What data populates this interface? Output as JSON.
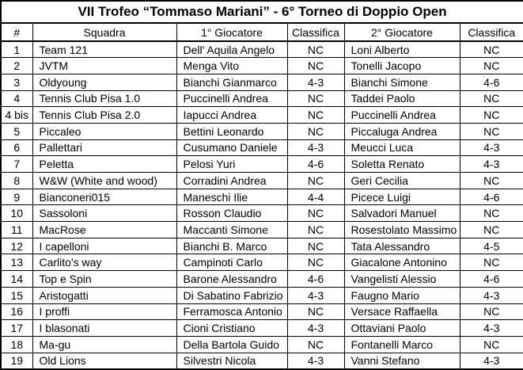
{
  "title": "VII Trofeo “Tommaso Mariani” - 6° Torneo di Doppio Open",
  "colors": {
    "border": "#000000",
    "background": "#ffffff",
    "text": "#000000"
  },
  "table": {
    "columns": [
      "#",
      "Squadra",
      "1° Giocatore",
      "Classifica",
      "2° Giocatore",
      "Classifica"
    ],
    "rows": [
      [
        "1",
        "Team 121",
        "Dell' Aquila Angelo",
        "NC",
        "Loni Alberto",
        "NC"
      ],
      [
        "2",
        "JVTM",
        "Menga Vito",
        "NC",
        "Tonelli Jacopo",
        "NC"
      ],
      [
        "3",
        "Oldyoung",
        "Bianchi Gianmarco",
        "4-3",
        "Bianchi Simone",
        "4-6"
      ],
      [
        "4",
        "Tennis Club Pisa 1.0",
        "Puccinelli Andrea",
        "NC",
        "Taddei Paolo",
        "NC"
      ],
      [
        "4 bis",
        "Tennis Club Pisa 2.0",
        "Iapucci Andrea",
        "NC",
        "Puccinelli Andrea",
        "NC"
      ],
      [
        "5",
        "Piccaleo",
        "Bettini Leonardo",
        "NC",
        "Piccaluga Andrea",
        "NC"
      ],
      [
        "6",
        "Pallettari",
        "Cusumano Daniele",
        "4-3",
        "Meucci Luca",
        "4-3"
      ],
      [
        "7",
        "Peletta",
        "Pelosi Yuri",
        "4-6",
        "Soletta Renato",
        "4-3"
      ],
      [
        "8",
        "W&W (White and wood)",
        "Corradini Andrea",
        "NC",
        "Geri Cecilia",
        "NC"
      ],
      [
        "9",
        "Bianconeri015",
        "Maneschi Ilie",
        "4-4",
        "Picece Luigi",
        "4-6"
      ],
      [
        "10",
        "Sassoloni",
        "Rosson Claudio",
        "NC",
        "Salvadori Manuel",
        "NC"
      ],
      [
        "11",
        "MacRose",
        "Maccanti Simone",
        "NC",
        "Rosestolato Massimo",
        "NC"
      ],
      [
        "12",
        "I capelloni",
        "Bianchi B. Marco",
        "NC",
        "Tata Alessandro",
        "4-5"
      ],
      [
        "13",
        "Carlito's way",
        "Campinoti Carlo",
        "NC",
        "Giacalone Antonino",
        "NC"
      ],
      [
        "14",
        "Top e Spin",
        "Barone Alessandro",
        "4-6",
        "Vangelisti Alessio",
        "4-6"
      ],
      [
        "15",
        "Aristogatti",
        "Di Sabatino Fabrizio",
        "4-3",
        "Faugno Mario",
        "4-3"
      ],
      [
        "16",
        "I proffi",
        "Ferramosca Antonio",
        "NC",
        "Versace Raffaella",
        "NC"
      ],
      [
        "17",
        "I blasonati",
        "Cioni Cristiano",
        "4-3",
        "Ottaviani Paolo",
        "4-3"
      ],
      [
        "18",
        "Ma-gu",
        "Della Bartola Guido",
        "NC",
        "Fontanelli Marco",
        "NC"
      ],
      [
        "19",
        "Old Lions",
        "Silvestri Nicola",
        "4-3",
        "Vanni Stefano",
        "4-3"
      ]
    ]
  }
}
